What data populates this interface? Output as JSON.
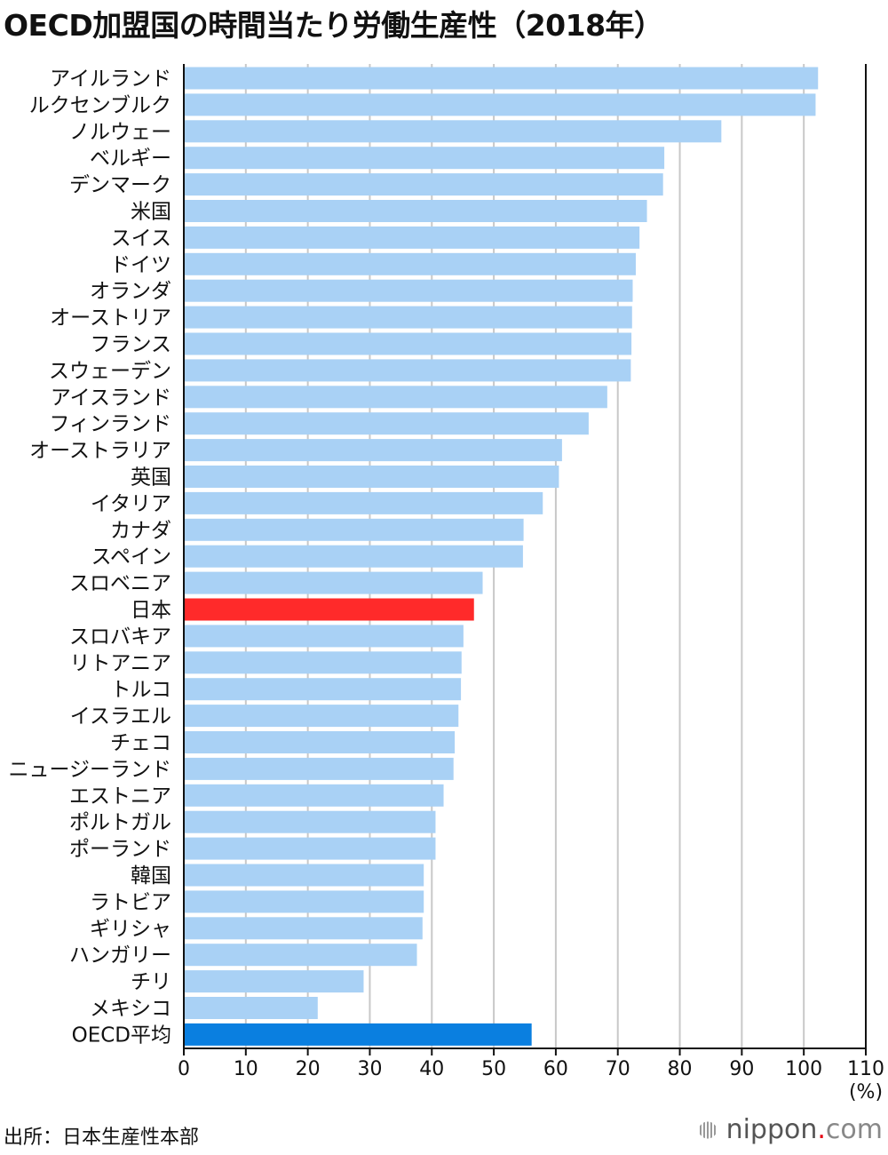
{
  "title": "OECD加盟国の時間当たり労働生産性（2018年）",
  "source": "出所：日本生産性本部",
  "brand": {
    "name": "nippon",
    "dot": ".",
    "tld": "com",
    "icon": "nippon-logo-icon"
  },
  "colors": {
    "default": "#a9d1f5",
    "highlight": "#ff2a2a",
    "average": "#0a7fe0",
    "grid": "#c8c8c8",
    "axis": "#111111"
  },
  "chart_data": {
    "type": "bar",
    "orientation": "horizontal",
    "title": "OECD加盟国の時間当たり労働生産性（2018年）",
    "xlabel": "",
    "ylabel": "",
    "unit": "(%)",
    "xlim": [
      0,
      110
    ],
    "xticks": [
      "0",
      "10",
      "20",
      "30",
      "40",
      "50",
      "60",
      "70",
      "80",
      "90",
      "100",
      "110"
    ],
    "grid": true,
    "categories": [
      "アイルランド",
      "ルクセンブルク",
      "ノルウェー",
      "ベルギー",
      "デンマーク",
      "米国",
      "スイス",
      "ドイツ",
      "オランダ",
      "オーストリア",
      "フランス",
      "スウェーデン",
      "アイスランド",
      "フィンランド",
      "オーストラリア",
      "英国",
      "イタリア",
      "カナダ",
      "スペイン",
      "スロベニア",
      "日本",
      "スロバキア",
      "リトアニア",
      "トルコ",
      "イスラエル",
      "チェコ",
      "ニュージーランド",
      "エストニア",
      "ポルトガル",
      "ポーランド",
      "韓国",
      "ラトビア",
      "ギリシャ",
      "ハンガリー",
      "チリ",
      "メキシコ",
      "OECD平均"
    ],
    "values": [
      102.3,
      101.9,
      86.7,
      77.5,
      77.3,
      74.7,
      73.5,
      72.9,
      72.4,
      72.3,
      72.2,
      72.1,
      68.3,
      65.3,
      61.0,
      60.5,
      57.9,
      54.8,
      54.7,
      48.2,
      46.8,
      45.1,
      44.8,
      44.7,
      44.3,
      43.7,
      43.5,
      41.9,
      40.6,
      40.6,
      38.7,
      38.7,
      38.5,
      37.6,
      29.0,
      21.6,
      56.1
    ],
    "highlight": [
      "日本"
    ],
    "average": [
      "OECD平均"
    ]
  }
}
